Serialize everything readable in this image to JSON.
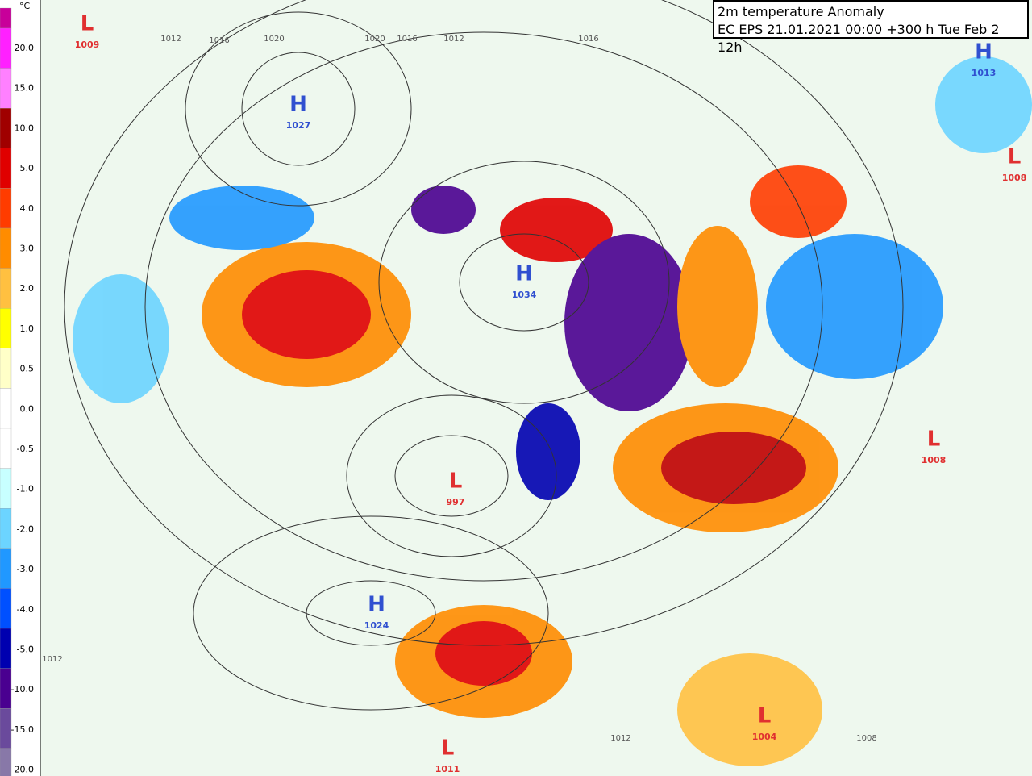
{
  "title": {
    "line1": "2m temperature Anomaly",
    "line2": "EC EPS 21.01.2021 00:00 +300 h Tue Feb 2 12h"
  },
  "legend": {
    "unit": "°C",
    "labels": [
      "20.0",
      "15.0",
      "10.0",
      "5.0",
      "4.0",
      "3.0",
      "2.0",
      "1.0",
      "0.5",
      "0.0",
      "-0.5",
      "-1.0",
      "-2.0",
      "-3.0",
      "-4.0",
      "-5.0",
      "-10.0",
      "-15.0",
      "-20.0"
    ],
    "colors": [
      "#c8009a",
      "#ff20ff",
      "#ff80ff",
      "#a00000",
      "#e00000",
      "#ff3c00",
      "#ff8c00",
      "#ffc040",
      "#ffff00",
      "#ffffc8",
      "#ffffff",
      "#ffffff",
      "#c8ffff",
      "#6cd4ff",
      "#2098ff",
      "#0050ff",
      "#0000b0",
      "#4a0090",
      "#6a4a9c",
      "#8878a8"
    ]
  },
  "pressure_centers": [
    {
      "kind": "L",
      "pressure": "1009"
    },
    {
      "kind": "H",
      "pressure": "1027"
    },
    {
      "kind": "H",
      "pressure": "1034"
    },
    {
      "kind": "H",
      "pressure": "1024"
    },
    {
      "kind": "L",
      "pressure": "997"
    },
    {
      "kind": "L",
      "pressure": "1008"
    },
    {
      "kind": "L",
      "pressure": "1008"
    },
    {
      "kind": "H",
      "pressure": "1013"
    },
    {
      "kind": "L",
      "pressure": "1011"
    },
    {
      "kind": "L",
      "pressure": "1004"
    }
  ],
  "isobar_labels": [
    "1012",
    "1016",
    "1020",
    "1020",
    "1016",
    "1012",
    "1016",
    "1012",
    "1012",
    "1008"
  ]
}
